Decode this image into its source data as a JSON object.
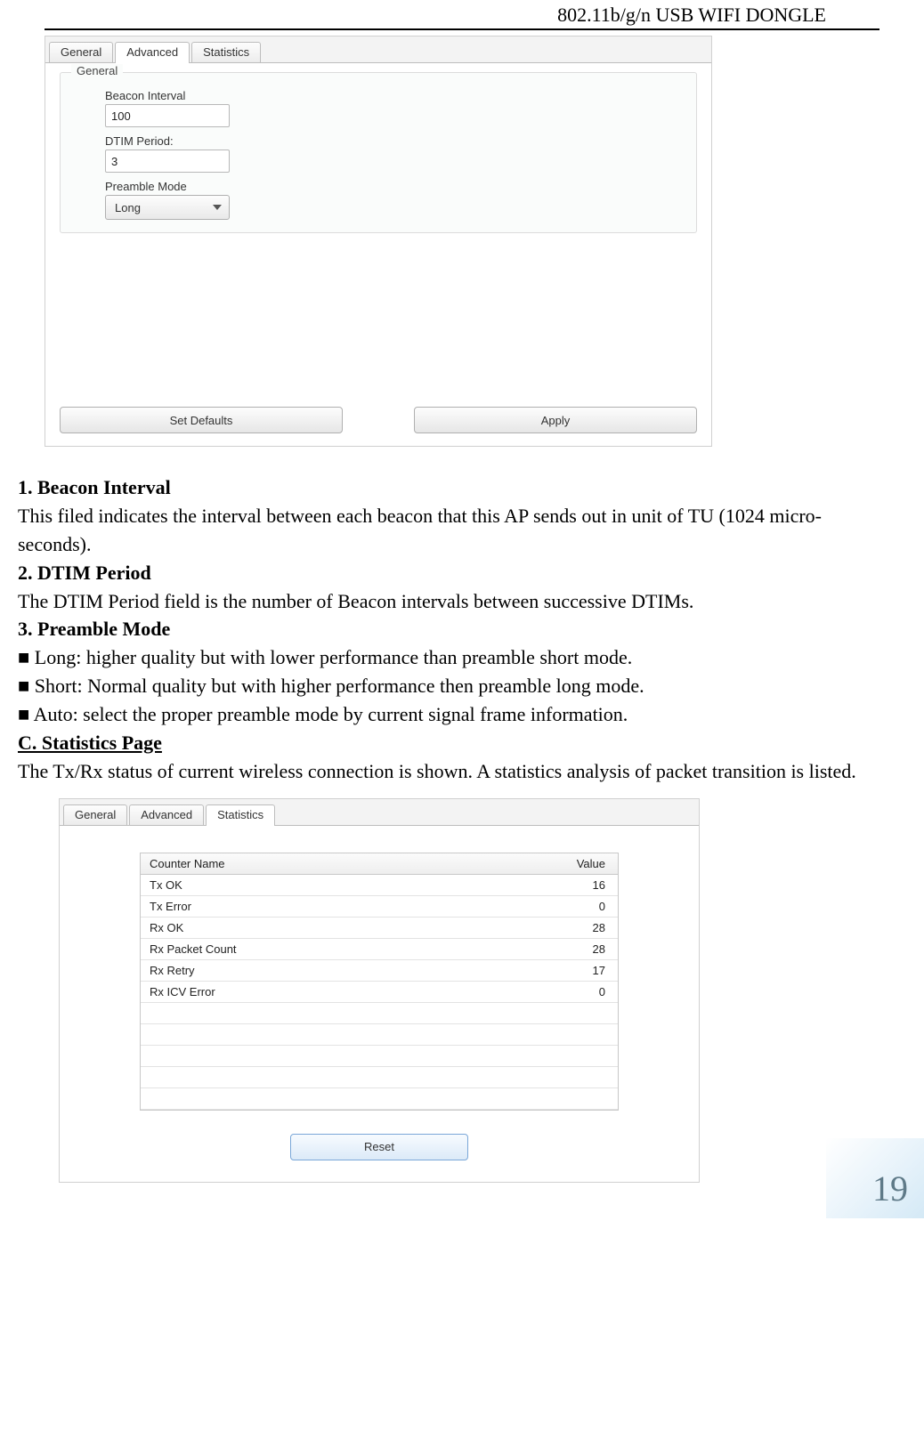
{
  "header": {
    "title": "802.11b/g/n USB WIFI DONGLE"
  },
  "screenshot_advanced": {
    "tabs": [
      {
        "label": "General",
        "active": false
      },
      {
        "label": "Advanced",
        "active": true
      },
      {
        "label": "Statistics",
        "active": false
      }
    ],
    "group_legend": "General",
    "fields": {
      "beacon_label": "Beacon Interval",
      "beacon_value": "100",
      "dtim_label": "DTIM Period:",
      "dtim_value": "3",
      "preamble_label": "Preamble Mode",
      "preamble_value": "Long"
    },
    "buttons": {
      "set_defaults": "Set Defaults",
      "apply": "Apply"
    }
  },
  "text": {
    "h1": "1. Beacon Interval",
    "p1": "This filed indicates the interval between each beacon that this AP sends out in unit of TU (1024 micro-seconds).",
    "h2": "2. DTIM Period",
    "p2": "The DTIM Period field is the number of Beacon intervals between successive DTIMs.",
    "h3": "3. Preamble Mode",
    "b1": "■ Long: higher quality but with lower performance than preamble short mode.",
    "b2": "■ Short: Normal quality but with higher performance then preamble long mode.",
    "b3": "■ Auto: select the proper preamble mode by current signal frame information.",
    "section_c": "C. Statistics Page",
    "p_stats": "The Tx/Rx status of current wireless connection is shown. A statistics analysis of packet transition is listed."
  },
  "screenshot_stats": {
    "tabs": [
      {
        "label": "General",
        "active": false
      },
      {
        "label": "Advanced",
        "active": false
      },
      {
        "label": "Statistics",
        "active": true
      }
    ],
    "columns": {
      "name": "Counter Name",
      "value": "Value"
    },
    "rows": [
      {
        "name": "Tx OK",
        "value": "16"
      },
      {
        "name": "Tx Error",
        "value": "0"
      },
      {
        "name": "Rx OK",
        "value": "28"
      },
      {
        "name": "Rx Packet Count",
        "value": "28"
      },
      {
        "name": "Rx Retry",
        "value": "17"
      },
      {
        "name": "Rx ICV Error",
        "value": "0"
      }
    ],
    "empty_rows": 5,
    "reset_label": "Reset"
  },
  "page_number": "19",
  "colors": {
    "rule": "#000000",
    "tab_border": "#bdbdbd",
    "panel_bg": "#ffffff",
    "btn_grad_top": "#fdfdfd",
    "btn_grad_bot": "#e6e6e6",
    "reset_border": "#7aa7d8",
    "pagenum_color": "#5f7a88"
  }
}
